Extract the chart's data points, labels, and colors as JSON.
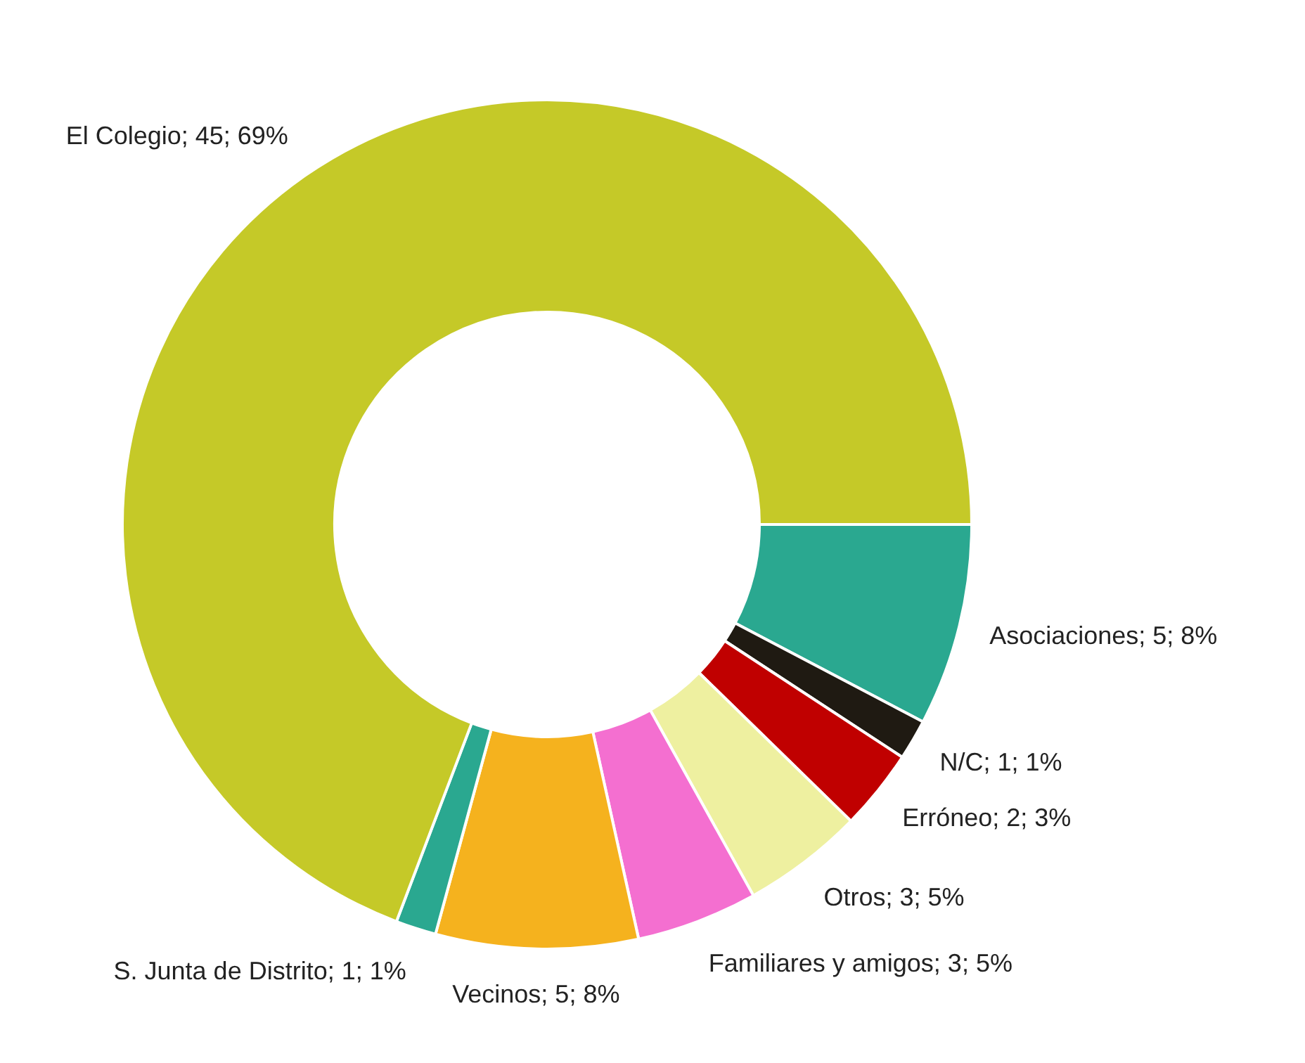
{
  "chart_data": {
    "type": "donut",
    "categories": [
      "Asociaciones",
      "N/C",
      "Erróneo",
      "Otros",
      "Familiares y amigos",
      "Vecinos",
      "S. Junta de Distrito",
      "El Colegio"
    ],
    "values": [
      5,
      1,
      2,
      3,
      3,
      5,
      1,
      45
    ],
    "value_labels": [
      "5; 8%",
      "1; 1%",
      "2; 3%",
      "3; 5%",
      "3; 5%",
      "5; 8%",
      "1; 1%",
      "45; 69%"
    ],
    "colors": [
      "#2aa890",
      "#1f1a12",
      "#c00000",
      "#eef0a0",
      "#f46fd0",
      "#f5b21e",
      "#2aa890",
      "#c5c928"
    ],
    "legend": false
  }
}
